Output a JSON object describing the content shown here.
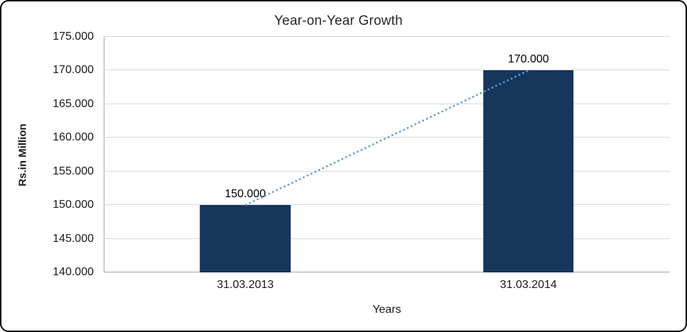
{
  "chart_data": {
    "type": "bar",
    "title": "Year-on-Year Growth",
    "xlabel": "Years",
    "ylabel": "Rs.in Million",
    "categories": [
      "31.03.2013",
      "31.03.2014"
    ],
    "values": [
      150000,
      170000
    ],
    "value_labels": [
      "150.000",
      "170.000"
    ],
    "ylim": [
      140000,
      175000
    ],
    "ytick_step": 5000,
    "ytick_labels": [
      "140.000",
      "145.000",
      "150.000",
      "155.000",
      "160.000",
      "165.000",
      "170.000",
      "175.000"
    ],
    "grid": true,
    "legend": "none",
    "trendline": true,
    "bar_width_pct": 16,
    "colors": {
      "bar": "#16365C",
      "trendline": "#5B9BD5",
      "gridline": "#D9D9D9",
      "axis": "#A6A6A6",
      "text": "#1A1A1A",
      "border": "#000000"
    }
  }
}
